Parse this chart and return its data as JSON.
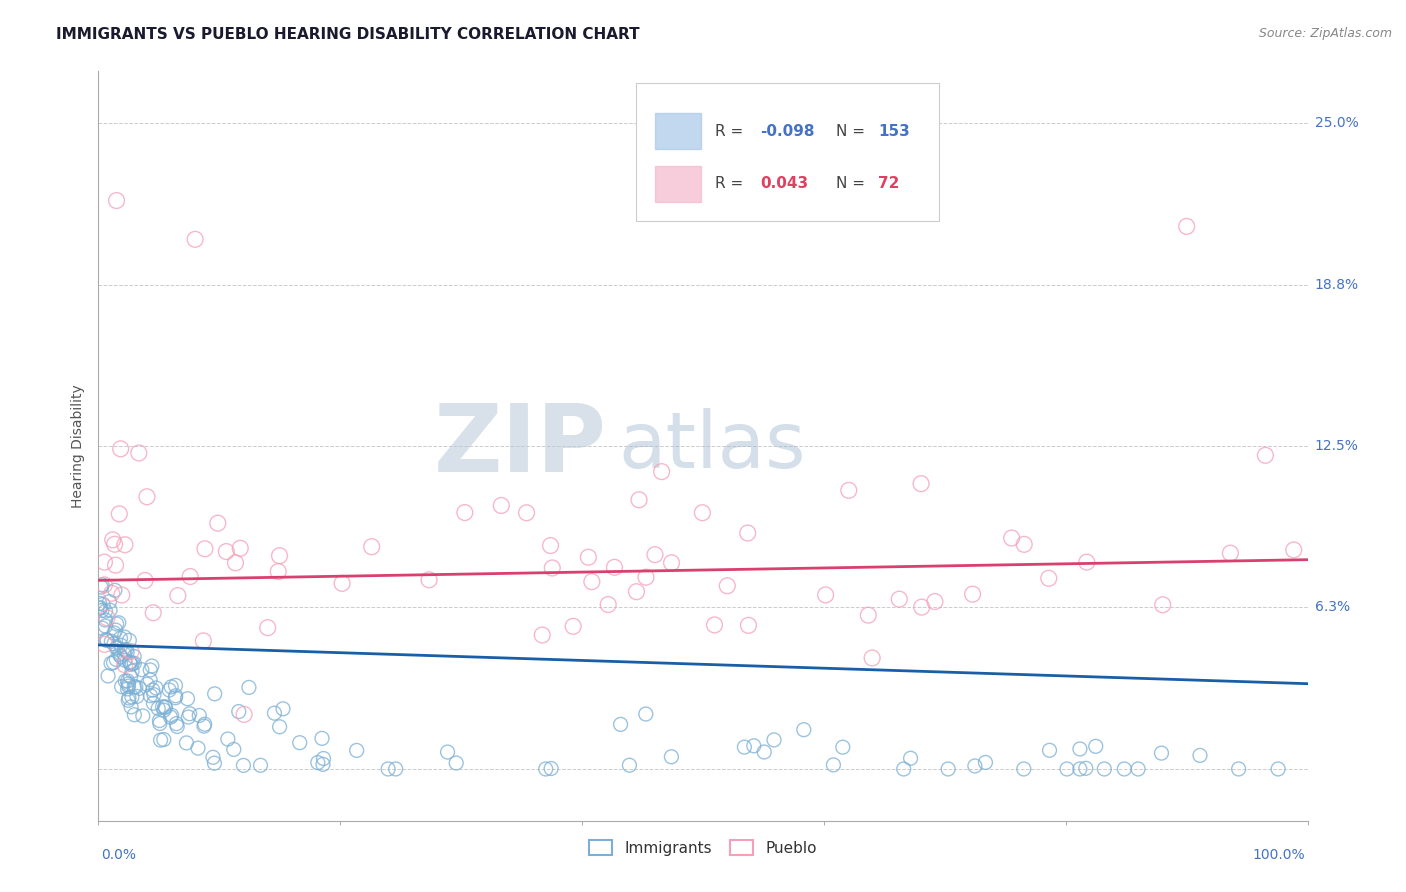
{
  "title": "IMMIGRANTS VS PUEBLO HEARING DISABILITY CORRELATION CHART",
  "source": "Source: ZipAtlas.com",
  "ylabel": "Hearing Disability",
  "ytick_values": [
    0.0,
    6.25,
    12.5,
    18.75,
    25.0
  ],
  "ytick_labels": [
    "",
    "6.3%",
    "12.5%",
    "18.8%",
    "25.0%"
  ],
  "immigrants_color": "#7bafd4",
  "pueblo_color": "#f4a0b8",
  "trendline_immigrants_color": "#1a5ea8",
  "trendline_pueblo_color": "#d94070",
  "background_color": "#ffffff",
  "legend_imm_color": "#a8c8e8",
  "legend_pub_color": "#f4b8cc",
  "watermark_zip_color": "#c0ccd8",
  "watermark_atlas_color": "#a8c0d8",
  "title_fontsize": 11,
  "source_fontsize": 9
}
